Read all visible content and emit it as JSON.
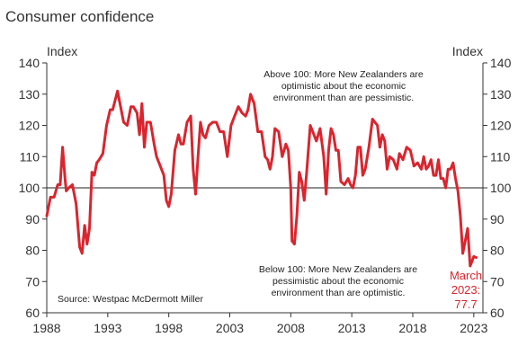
{
  "chart_data": {
    "type": "line",
    "title": "Consumer confidence",
    "ylabel_left": "Index",
    "ylabel_right": "Index",
    "ylim": [
      60,
      140
    ],
    "yticks": [
      60,
      70,
      80,
      90,
      100,
      110,
      120,
      130,
      140
    ],
    "xlim": [
      1988,
      2023.75
    ],
    "xticks": [
      1988,
      1993,
      1998,
      2003,
      2008,
      2013,
      2018,
      2023
    ],
    "reference_line": 100,
    "grid": false,
    "legend": "none",
    "series": [
      {
        "color": "#d9252e",
        "x": [
          1988.0,
          1988.3,
          1988.6,
          1988.9,
          1989.1,
          1989.3,
          1989.5,
          1989.6,
          1989.8,
          1990.1,
          1990.4,
          1990.7,
          1990.9,
          1991.1,
          1991.3,
          1991.5,
          1991.7,
          1991.9,
          1992.1,
          1992.3,
          1992.6,
          1992.9,
          1993.2,
          1993.4,
          1993.6,
          1993.8,
          1994.0,
          1994.3,
          1994.6,
          1994.9,
          1995.1,
          1995.4,
          1995.6,
          1995.8,
          1996.0,
          1996.2,
          1996.5,
          1996.8,
          1997.0,
          1997.3,
          1997.6,
          1997.8,
          1998.0,
          1998.2,
          1998.5,
          1998.8,
          1999.0,
          1999.2,
          1999.5,
          1999.8,
          2000.0,
          2000.2,
          2000.4,
          2000.6,
          2000.8,
          2001.0,
          2001.3,
          2001.6,
          2001.9,
          2002.2,
          2002.5,
          2002.8,
          2003.1,
          2003.4,
          2003.7,
          2004.0,
          2004.3,
          2004.5,
          2004.7,
          2005.0,
          2005.3,
          2005.6,
          2005.9,
          2006.1,
          2006.3,
          2006.5,
          2006.7,
          2007.0,
          2007.3,
          2007.6,
          2007.8,
          2008.0,
          2008.1,
          2008.3,
          2008.5,
          2008.7,
          2008.9,
          2009.1,
          2009.3,
          2009.6,
          2009.9,
          2010.1,
          2010.4,
          2010.7,
          2010.9,
          2011.1,
          2011.3,
          2011.5,
          2011.7,
          2011.9,
          2012.1,
          2012.4,
          2012.7,
          2012.9,
          2013.1,
          2013.3,
          2013.5,
          2013.7,
          2013.9,
          2014.1,
          2014.4,
          2014.7,
          2014.9,
          2015.1,
          2015.3,
          2015.5,
          2015.7,
          2015.9,
          2016.1,
          2016.4,
          2016.7,
          2016.9,
          2017.2,
          2017.5,
          2017.8,
          2018.1,
          2018.4,
          2018.7,
          2018.9,
          2019.1,
          2019.3,
          2019.5,
          2019.7,
          2019.9,
          2020.1,
          2020.3,
          2020.5,
          2020.7,
          2020.9,
          2021.1,
          2021.3,
          2021.5,
          2021.7,
          2021.9,
          2022.1,
          2022.3,
          2022.5,
          2022.7,
          2022.9,
          2023.0,
          2023.2
        ],
        "y": [
          91,
          97,
          97,
          101,
          101,
          113,
          103,
          99,
          100,
          101,
          95,
          81,
          79,
          88,
          82,
          87,
          105,
          104,
          108,
          109,
          111,
          120,
          125,
          125,
          128,
          131,
          127,
          121,
          120,
          126,
          126,
          124,
          117,
          127,
          113,
          121,
          121,
          114,
          110,
          107,
          104,
          96,
          94,
          98,
          112,
          117,
          114,
          114,
          121,
          123,
          106,
          98,
          110,
          121,
          117,
          116,
          120,
          121,
          121,
          118,
          118,
          110,
          120,
          123,
          126,
          124,
          123,
          125,
          130,
          127,
          118,
          118,
          110,
          109,
          106,
          110,
          119,
          118,
          110,
          114,
          112,
          100,
          83,
          82,
          91,
          105,
          102,
          96,
          105,
          120,
          117,
          115,
          119,
          110,
          98,
          112,
          119,
          117,
          112,
          112,
          102,
          101,
          103,
          101,
          100,
          104,
          113,
          113,
          104,
          106,
          113,
          122,
          121,
          120,
          113,
          117,
          115,
          106,
          110,
          109,
          106,
          111,
          109,
          113,
          112,
          107,
          108,
          106,
          110,
          106,
          107,
          109,
          104,
          104,
          109,
          103,
          103,
          100,
          106,
          106,
          108,
          103,
          99,
          91,
          79,
          83,
          87,
          75,
          77,
          78,
          77.7
        ]
      }
    ],
    "annotations": {
      "above": [
        "Above 100: More New Zealanders are",
        "optimistic about the economic",
        "environment than are pessimistic."
      ],
      "below": [
        "Below 100: More New Zealanders are",
        "pessimistic about the economic",
        "environment than are optimistic."
      ],
      "source": "Source: Westpac McDermott Miller",
      "end_label": [
        "March",
        "2023:",
        "77.7"
      ]
    }
  }
}
